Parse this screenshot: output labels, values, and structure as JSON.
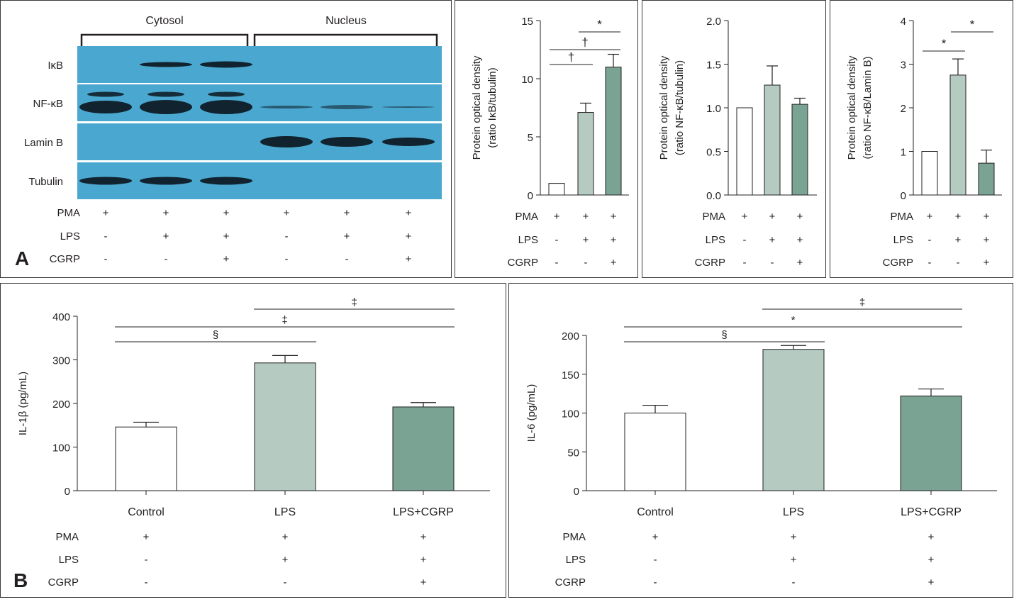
{
  "panel_letters": {
    "a": "A",
    "b": "B"
  },
  "blot": {
    "group_labels": [
      "Cytosol",
      "Nucleus"
    ],
    "row_labels": [
      "IκB",
      "NF-κB",
      "Lamin B",
      "Tubulin"
    ],
    "treatments": [
      {
        "name": "PMA",
        "marks": [
          "+",
          "+",
          "+",
          "+",
          "+",
          "+"
        ]
      },
      {
        "name": "LPS",
        "marks": [
          "-",
          "+",
          "+",
          "-",
          "+",
          "+"
        ]
      },
      {
        "name": "CGRP",
        "marks": [
          "-",
          "-",
          "+",
          "-",
          "-",
          "+"
        ]
      }
    ],
    "colors": {
      "membrane": "#4aa8d0",
      "band": "#0c1820"
    }
  },
  "treatments_3": [
    {
      "name": "PMA",
      "marks": [
        "+",
        "+",
        "+"
      ]
    },
    {
      "name": "LPS",
      "marks": [
        "-",
        "+",
        "+"
      ]
    },
    {
      "name": "CGRP",
      "marks": [
        "-",
        "-",
        "+"
      ]
    }
  ],
  "colors": {
    "control": "#ffffff",
    "lps": "#b5cbc2",
    "lps_cgrp": "#7aa393",
    "stroke": "#231f20"
  },
  "chart_data": [
    {
      "type": "bar",
      "ylabel_lines": [
        "Protein optical density",
        "(ratio IκB/tubulin)"
      ],
      "ylim": [
        0,
        15
      ],
      "yticks": [
        0,
        5,
        10,
        15
      ],
      "values": [
        1.0,
        7.1,
        11.0
      ],
      "errors": [
        0,
        0.8,
        1.1
      ],
      "significance": [
        {
          "from": 1,
          "to": 2,
          "label": "*"
        },
        {
          "from": 0,
          "to": 2,
          "label": "†"
        },
        {
          "from": 0,
          "to": 1,
          "label": "†"
        }
      ]
    },
    {
      "type": "bar",
      "ylabel_lines": [
        "Protein optical density",
        "(ratio NF-κB/tubulin)"
      ],
      "ylim": [
        0,
        2.0
      ],
      "yticks": [
        "0.0",
        "0.5",
        "1.0",
        "1.5",
        "2.0"
      ],
      "values": [
        1.0,
        1.26,
        1.04
      ],
      "errors": [
        0,
        0.22,
        0.07
      ],
      "significance": []
    },
    {
      "type": "bar",
      "ylabel_lines": [
        "Protein optical density",
        "(ratio NF-κB/Lamin B)"
      ],
      "ylim": [
        0,
        4
      ],
      "yticks": [
        0,
        1,
        2,
        3,
        4
      ],
      "values": [
        1.0,
        2.75,
        0.73
      ],
      "errors": [
        0,
        0.37,
        0.3
      ],
      "significance": [
        {
          "from": 1,
          "to": 2,
          "label": "*"
        },
        {
          "from": 0,
          "to": 1,
          "label": "*"
        }
      ]
    },
    {
      "type": "bar",
      "categories": [
        "Control",
        "LPS",
        "LPS+CGRP"
      ],
      "ylabel": "IL-1β (pg/mL)",
      "ylim": [
        0,
        400
      ],
      "yticks": [
        0,
        100,
        200,
        300,
        400
      ],
      "values": [
        146,
        293,
        192
      ],
      "errors": [
        11,
        17,
        10
      ],
      "significance": [
        {
          "from": 1,
          "to": 2,
          "label": "‡"
        },
        {
          "from": 0,
          "to": 2,
          "label": "‡"
        },
        {
          "from": 0,
          "to": 1,
          "label": "§"
        }
      ]
    },
    {
      "type": "bar",
      "categories": [
        "Control",
        "LPS",
        "LPS+CGRP"
      ],
      "ylabel": "IL-6 (pg/mL)",
      "ylim": [
        0,
        200
      ],
      "yticks": [
        0,
        50,
        100,
        150,
        200
      ],
      "values": [
        100,
        182,
        122
      ],
      "errors": [
        10,
        5,
        9
      ],
      "significance": [
        {
          "from": 1,
          "to": 2,
          "label": "‡"
        },
        {
          "from": 0,
          "to": 2,
          "label": "*"
        },
        {
          "from": 0,
          "to": 1,
          "label": "§"
        }
      ]
    }
  ]
}
